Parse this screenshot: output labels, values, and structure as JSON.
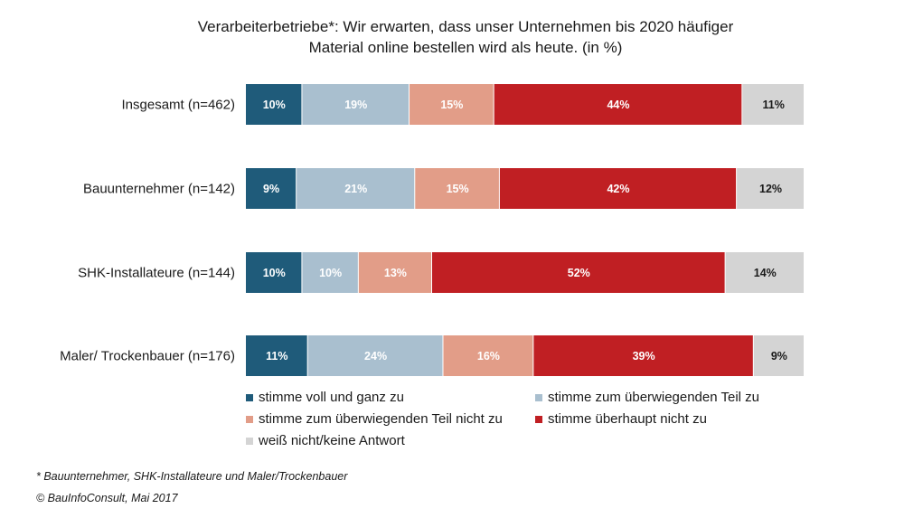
{
  "chart_data": {
    "type": "bar",
    "orientation": "horizontal",
    "stacked": true,
    "title": "Verarbeiterbetriebe*: Wir erwarten, dass unser Unternehmen bis 2020 häufiger Material online bestellen wird als heute. (in %)",
    "title_lines": [
      "Verarbeiterbetriebe*: Wir erwarten, dass unser Unternehmen bis 2020 häufiger",
      "Material online bestellen wird als heute. (in %)"
    ],
    "categories": [
      "Insgesamt (n=462)",
      "Bauunternehmer (n=142)",
      "SHK-Installateure (n=144)",
      "Maler/ Trockenbauer (n=176)"
    ],
    "series": [
      {
        "name": "stimme voll und ganz zu",
        "color": "#1f5b7a",
        "values": [
          10,
          9,
          10,
          11
        ]
      },
      {
        "name": "stimme zum überwiegenden Teil zu",
        "color": "#a9bfcf",
        "values": [
          19,
          21,
          10,
          24
        ]
      },
      {
        "name": "stimme zum überwiegenden Teil nicht zu",
        "color": "#e29d88",
        "values": [
          15,
          15,
          13,
          16
        ]
      },
      {
        "name": "stimme überhaupt nicht zu",
        "color": "#c01f23",
        "values": [
          44,
          42,
          52,
          39
        ]
      },
      {
        "name": "weiß nicht/keine Antwort",
        "color": "#d4d4d4",
        "values": [
          11,
          12,
          14,
          9
        ]
      }
    ],
    "data_label_suffix": "%",
    "legend_position": "bottom",
    "grid": false
  },
  "footnotes": {
    "note": "* Bauunternehmer, SHK-Installateure und Maler/Trockenbauer",
    "source": "© BauInfoConsult, Mai 2017"
  }
}
